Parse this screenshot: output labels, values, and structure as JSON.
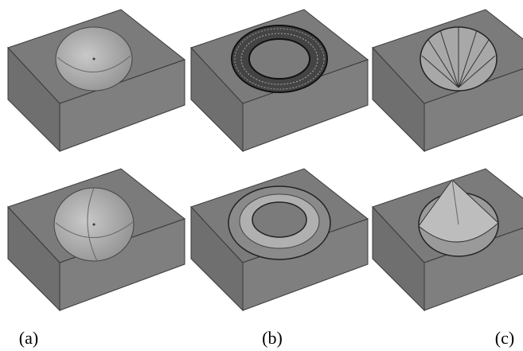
{
  "labels": [
    "(a)",
    "(b)",
    "(c)"
  ]
}
